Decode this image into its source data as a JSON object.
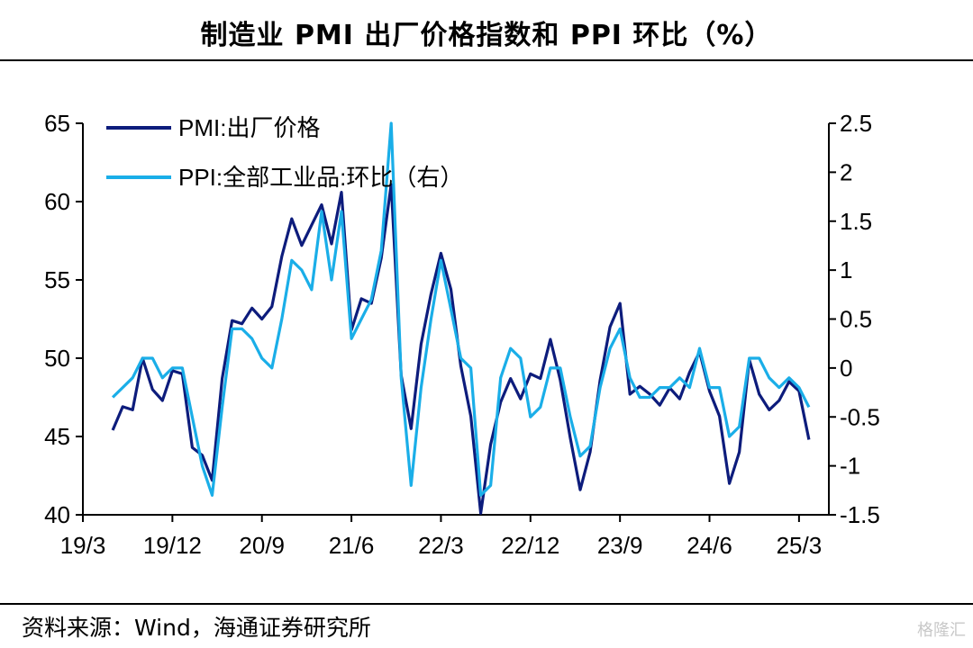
{
  "title": "制造业 PMI 出厂价格指数和 PPI 环比（%）",
  "source": "资料来源：Wind，海通证券研究所",
  "watermark": "格隆汇",
  "chart_data": {
    "type": "line",
    "x_tick_labels": [
      "19/3",
      "19/12",
      "20/9",
      "21/6",
      "22/3",
      "22/12",
      "23/9",
      "24/6",
      "25/3"
    ],
    "x": [
      "19/6",
      "19/7",
      "19/8",
      "19/9",
      "19/10",
      "19/11",
      "19/12",
      "20/1",
      "20/2",
      "20/3",
      "20/4",
      "20/5",
      "20/6",
      "20/7",
      "20/8",
      "20/9",
      "20/10",
      "20/11",
      "20/12",
      "21/1",
      "21/2",
      "21/3",
      "21/4",
      "21/5",
      "21/6",
      "21/7",
      "21/8",
      "21/9",
      "21/10",
      "21/11",
      "21/12",
      "22/1",
      "22/2",
      "22/3",
      "22/4",
      "22/5",
      "22/6",
      "22/7",
      "22/8",
      "22/9",
      "22/10",
      "22/11",
      "22/12",
      "23/1",
      "23/2",
      "23/3",
      "23/4",
      "23/5",
      "23/6",
      "23/7",
      "23/8",
      "23/9",
      "23/10",
      "23/11",
      "23/12",
      "24/1",
      "24/2",
      "24/3",
      "24/4",
      "24/5",
      "24/6",
      "24/7",
      "24/8",
      "24/9",
      "24/10",
      "24/11",
      "24/12",
      "25/1",
      "25/2",
      "25/3",
      "25/4"
    ],
    "y_left": {
      "ticks": [
        "40",
        "45",
        "50",
        "55",
        "60",
        "65"
      ],
      "ylim": [
        40,
        65
      ]
    },
    "y_right": {
      "ticks": [
        "-1.5",
        "-1",
        "-0.5",
        "0",
        "0.5",
        "1",
        "1.5",
        "2",
        "2.5"
      ],
      "ylim": [
        -1.5,
        2.5
      ]
    },
    "legend_position": "top-left",
    "series": [
      {
        "name": "PMI:出厂价格",
        "axis": "left",
        "color": "#0d1c7c",
        "values": [
          45.4,
          46.9,
          46.7,
          50.0,
          48.0,
          47.3,
          49.2,
          49.0,
          44.3,
          43.8,
          42.2,
          48.7,
          52.4,
          52.2,
          53.2,
          52.5,
          53.3,
          56.5,
          58.9,
          57.2,
          58.5,
          59.8,
          57.3,
          60.6,
          51.8,
          53.8,
          53.5,
          56.4,
          61.1,
          48.9,
          45.5,
          50.9,
          54.1,
          56.7,
          54.4,
          49.5,
          46.3,
          40.1,
          44.5,
          47.2,
          48.7,
          47.4,
          49.0,
          48.7,
          51.2,
          48.6,
          44.9,
          41.6,
          44.0,
          48.6,
          52.0,
          53.5,
          47.7,
          48.2,
          47.7,
          47.0,
          48.1,
          47.4,
          49.1,
          50.4,
          47.9,
          46.3,
          42.0,
          44.0,
          49.9,
          47.7,
          46.7,
          47.3,
          48.5,
          47.9,
          44.8
        ]
      },
      {
        "name": "PPI:全部工业品:环比（右）",
        "axis": "right",
        "color": "#1aaee8",
        "values": [
          -0.3,
          -0.2,
          -0.1,
          0.1,
          0.1,
          -0.1,
          0.0,
          0.0,
          -0.5,
          -1.0,
          -1.3,
          -0.4,
          0.4,
          0.4,
          0.3,
          0.1,
          0.0,
          0.5,
          1.1,
          1.0,
          0.8,
          1.6,
          0.9,
          1.6,
          0.3,
          0.5,
          0.7,
          1.2,
          2.5,
          -0.1,
          -1.2,
          -0.2,
          0.5,
          1.1,
          0.6,
          0.1,
          0.0,
          -1.3,
          -1.2,
          -0.1,
          0.2,
          0.1,
          -0.5,
          -0.4,
          0.0,
          0.0,
          -0.5,
          -0.9,
          -0.8,
          -0.2,
          0.2,
          0.4,
          -0.1,
          -0.3,
          -0.3,
          -0.2,
          -0.2,
          -0.1,
          -0.2,
          0.2,
          -0.2,
          -0.2,
          -0.7,
          -0.6,
          0.1,
          0.1,
          -0.1,
          -0.2,
          -0.1,
          -0.2,
          -0.4
        ]
      }
    ]
  }
}
